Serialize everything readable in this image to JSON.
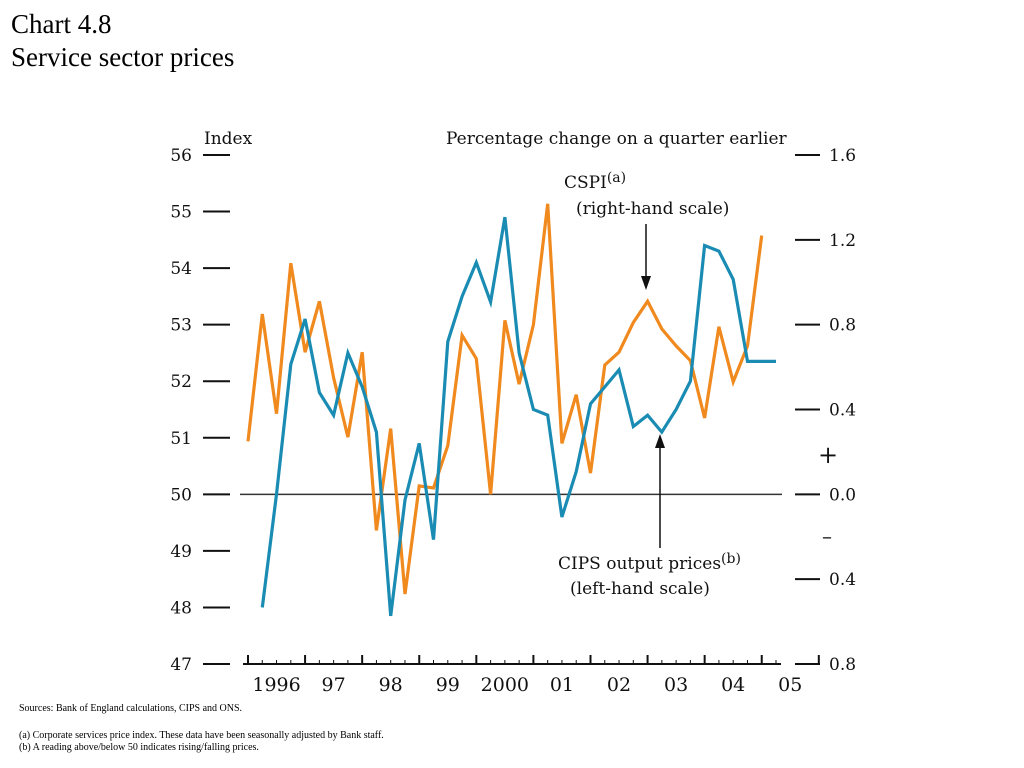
{
  "title": {
    "line1": "Chart 4.8",
    "line2": "Service sector prices"
  },
  "notes": {
    "sources": "Sources:  Bank of England calculations, CIPS and ONS.",
    "note_a": "(a)  Corporate services price index.  These data have been seasonally adjusted by Bank staff.",
    "note_b": "(b)  A reading above/below 50 indicates rising/falling prices."
  },
  "chart_data": {
    "type": "line",
    "left_axis": {
      "label": "Index",
      "range": [
        47,
        56
      ],
      "ticks": [
        "56",
        "55",
        "54",
        "53",
        "52",
        "51",
        "50",
        "49",
        "48",
        "47"
      ]
    },
    "right_axis": {
      "label": "Percentage change on a quarter earlier",
      "range": [
        -0.8,
        1.6
      ],
      "ticks": [
        {
          "value": 1.6,
          "label": "1.6"
        },
        {
          "value": 1.2,
          "label": "1.2"
        },
        {
          "value": 0.8,
          "label": "0.8"
        },
        {
          "value": 0.4,
          "label": "0.4"
        },
        {
          "value": 0.0,
          "label": "0.0"
        },
        {
          "value": -0.4,
          "label": "0.4"
        },
        {
          "value": -0.8,
          "label": "0.8"
        }
      ],
      "plus_sign": "+",
      "minus_sign": "–"
    },
    "x_axis": {
      "range": [
        1996.0,
        2005.25
      ],
      "labels": [
        "1996",
        "97",
        "98",
        "99",
        "2000",
        "01",
        "02",
        "03",
        "04",
        "05"
      ]
    },
    "zero_line": 50,
    "series": [
      {
        "name": "CSPI",
        "annotation": {
          "name": "CSPI",
          "sup": "(a)",
          "scale": "(right-hand scale)"
        },
        "axis": "right",
        "color": "#F0891E",
        "x": [
          1996.0,
          1996.25,
          1996.5,
          1996.75,
          1997.0,
          1997.25,
          1997.5,
          1997.75,
          1998.0,
          1998.25,
          1998.5,
          1998.75,
          1999.0,
          1999.25,
          1999.5,
          1999.75,
          2000.0,
          2000.25,
          2000.5,
          2000.75,
          2001.0,
          2001.25,
          2001.5,
          2001.75,
          2002.0,
          2002.25,
          2002.5,
          2002.75,
          2003.0,
          2003.25,
          2003.5,
          2003.75,
          2004.0,
          2004.25,
          2004.5,
          2004.75,
          2005.0
        ],
        "y": [
          0.25,
          0.85,
          0.38,
          1.09,
          0.67,
          0.91,
          0.55,
          0.27,
          0.67,
          -0.17,
          0.31,
          -0.47,
          0.04,
          0.03,
          0.23,
          0.75,
          0.64,
          0.0,
          0.82,
          0.52,
          0.8,
          1.37,
          0.24,
          0.47,
          0.1,
          0.61,
          0.67,
          0.81,
          0.91,
          0.78,
          0.7,
          0.63,
          0.36,
          0.79,
          0.53,
          0.7,
          1.22
        ]
      },
      {
        "name": "CIPS output prices",
        "annotation": {
          "name": "CIPS output prices",
          "sup": "(b)",
          "scale": "(left-hand scale)"
        },
        "axis": "left",
        "color": "#1A8CB4",
        "x": [
          1996.25,
          1996.5,
          1996.75,
          1997.0,
          1997.25,
          1997.5,
          1997.75,
          1998.0,
          1998.25,
          1998.5,
          1998.75,
          1999.0,
          1999.25,
          1999.5,
          1999.75,
          2000.0,
          2000.25,
          2000.5,
          2000.75,
          2001.0,
          2001.25,
          2001.5,
          2001.75,
          2002.0,
          2002.25,
          2002.5,
          2002.75,
          2003.0,
          2003.25,
          2003.5,
          2003.75,
          2004.0,
          2004.25,
          2004.5,
          2004.75,
          2005.0,
          2005.25
        ],
        "y": [
          48.0,
          50.0,
          52.3,
          53.1,
          51.8,
          51.4,
          52.5,
          51.9,
          51.1,
          47.85,
          49.9,
          50.9,
          49.2,
          52.7,
          53.5,
          54.1,
          53.4,
          54.9,
          52.5,
          51.5,
          51.4,
          49.6,
          50.4,
          51.6,
          51.9,
          52.2,
          51.2,
          51.4,
          51.1,
          51.5,
          52.0,
          54.4,
          54.3,
          53.8,
          52.35,
          52.35,
          52.35
        ]
      }
    ]
  }
}
